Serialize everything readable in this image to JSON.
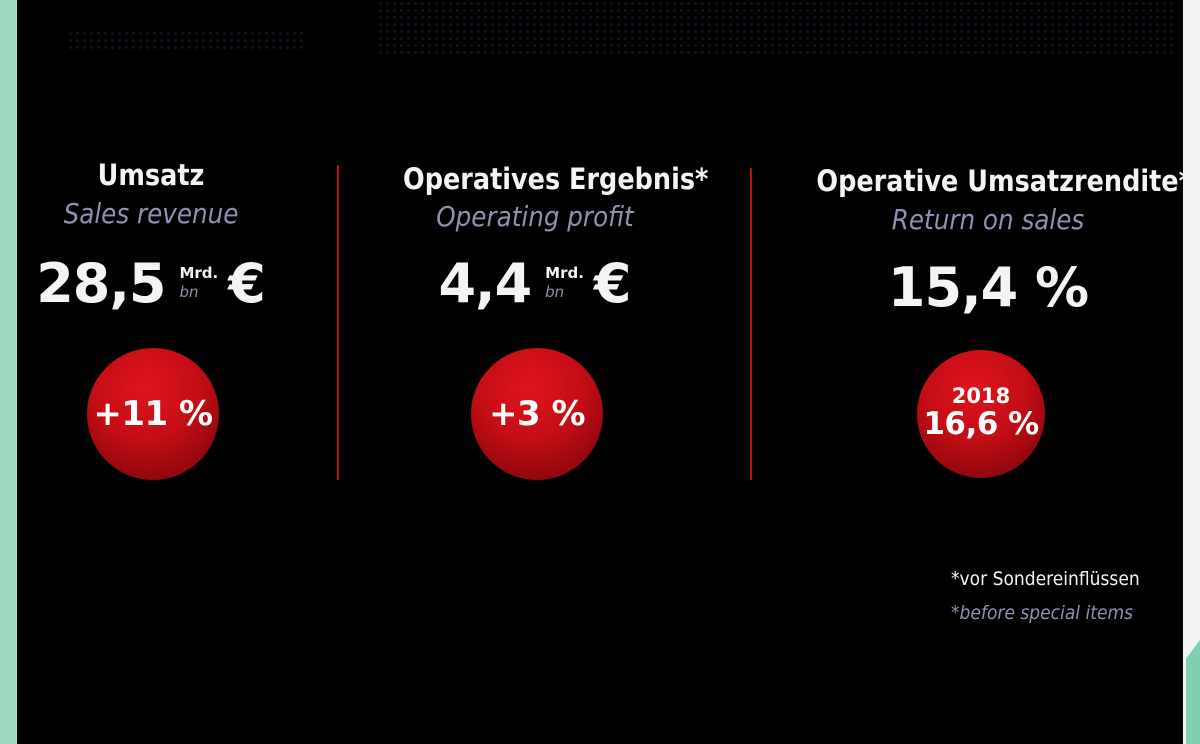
{
  "metrics": [
    {
      "title": "Umsatz",
      "subtitle": "Sales revenue",
      "value": "28,5",
      "unit_de": "Mrd.",
      "unit_en": "bn",
      "currency": "€",
      "badge": "+11 %"
    },
    {
      "title": "Operatives Ergebnis*",
      "subtitle": "Operating profit",
      "value": "4,4",
      "unit_de": "Mrd.",
      "unit_en": "bn",
      "currency": "€",
      "badge": "+3 %"
    },
    {
      "title": "Operative Umsatzrendite*",
      "subtitle": "Return on sales",
      "value": "15,4 %",
      "badge_year": "2018",
      "badge_value": "16,6 %"
    }
  ],
  "footnote": {
    "de": "*vor Sondereinflüssen",
    "en": "*before special items"
  },
  "colors": {
    "background": "#000000",
    "accent_red": "#c30d15",
    "text_primary": "#f4f4f4",
    "text_secondary": "#8c93b2"
  }
}
